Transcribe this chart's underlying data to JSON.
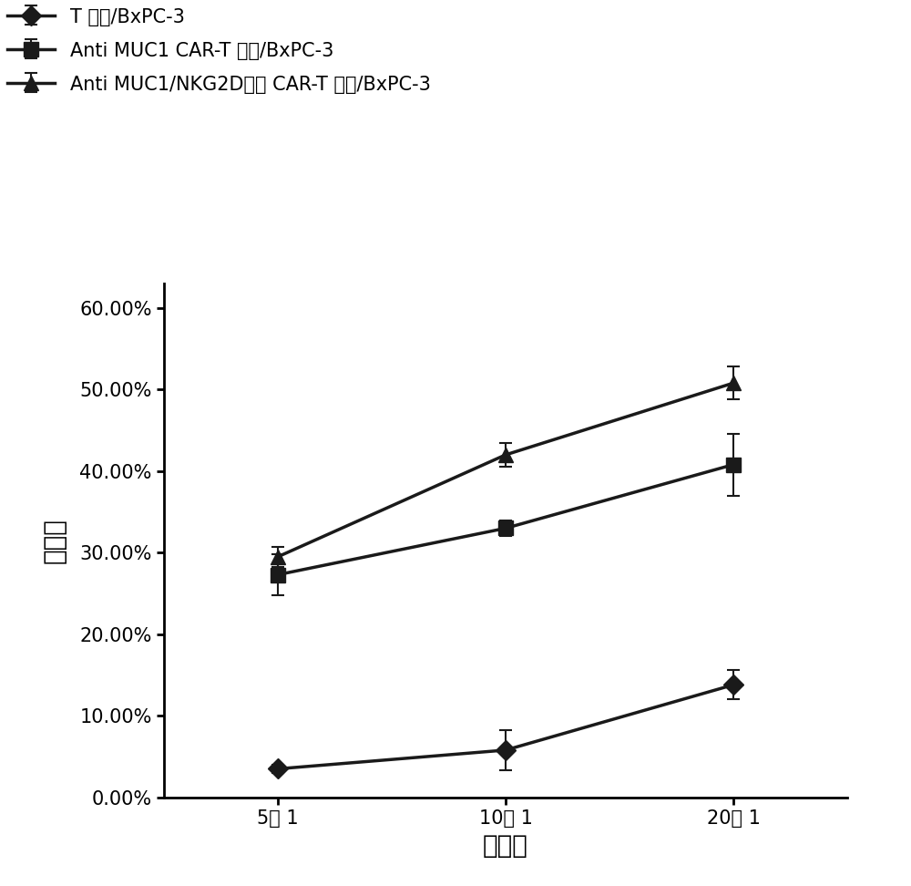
{
  "x_positions": [
    1,
    2,
    3
  ],
  "x_labels": [
    "5： 1",
    "10： 1",
    "20： 1"
  ],
  "xlabel": "效靶比",
  "ylabel": "杀瘾率",
  "series": [
    {
      "label": "T 细胞/BxPC-3",
      "y": [
        0.035,
        0.058,
        0.138
      ],
      "yerr": [
        0.005,
        0.025,
        0.018
      ],
      "marker": "D",
      "color": "#1a1a1a"
    },
    {
      "label": "Anti MUC1 CAR-T 细胞/BxPC-3",
      "y": [
        0.273,
        0.33,
        0.408
      ],
      "yerr": [
        0.025,
        0.01,
        0.038
      ],
      "marker": "s",
      "color": "#1a1a1a"
    },
    {
      "label": "Anti MUC1/NKG2D配体 CAR-T 细胞/BxPC-3",
      "y": [
        0.295,
        0.42,
        0.508
      ],
      "yerr": [
        0.012,
        0.015,
        0.02
      ],
      "marker": "^",
      "color": "#1a1a1a"
    }
  ],
  "ylim": [
    0.0,
    0.63
  ],
  "yticks": [
    0.0,
    0.1,
    0.2,
    0.3,
    0.4,
    0.5,
    0.6
  ],
  "ytick_labels": [
    "0.00%",
    "10.00%",
    "20.00%",
    "30.00%",
    "40.00%",
    "50.00%",
    "60.00%"
  ],
  "background_color": "#ffffff",
  "legend_fontsize": 15,
  "axis_label_fontsize": 20,
  "tick_fontsize": 15
}
